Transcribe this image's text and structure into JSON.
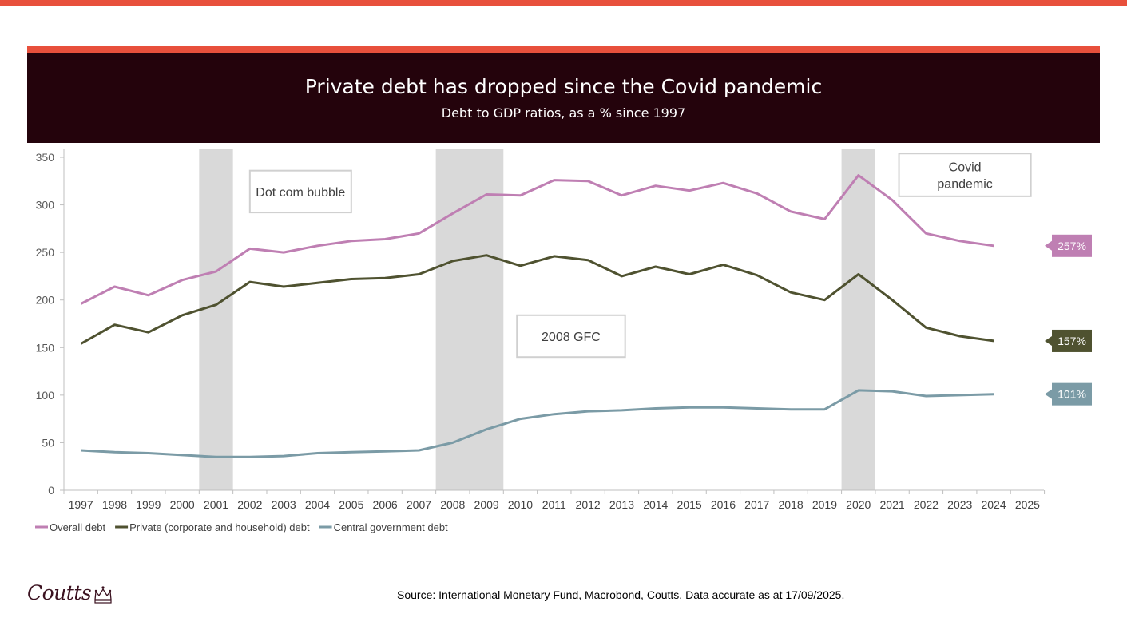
{
  "header": {
    "title": "Private debt has dropped since the Covid pandemic",
    "subtitle": "Debt to GDP ratios, as a % since 1997"
  },
  "colors": {
    "top_bar": "#e8503c",
    "header_bg": "#24030c",
    "overall": "#bf7fb3",
    "private": "#4f5230",
    "government": "#7b9ba6",
    "shading": "#d9d9d9"
  },
  "chart_data": {
    "type": "line",
    "x": [
      1997,
      1998,
      1999,
      2000,
      2001,
      2002,
      2003,
      2004,
      2005,
      2006,
      2007,
      2008,
      2009,
      2010,
      2011,
      2012,
      2013,
      2014,
      2015,
      2016,
      2017,
      2018,
      2019,
      2020,
      2021,
      2022,
      2023,
      2024
    ],
    "x_ticks": [
      "1997",
      "1998",
      "1999",
      "2000",
      "2001",
      "2002",
      "2003",
      "2004",
      "2005",
      "2006",
      "2007",
      "2008",
      "2009",
      "2010",
      "2011",
      "2012",
      "2013",
      "2014",
      "2015",
      "2016",
      "2017",
      "2018",
      "2019",
      "2020",
      "2021",
      "2022",
      "2023",
      "2024",
      "2025"
    ],
    "ylim": [
      0,
      350
    ],
    "y_ticks": [
      "0",
      "50",
      "100",
      "150",
      "200",
      "250",
      "300",
      "350"
    ],
    "series": [
      {
        "name": "Overall debt",
        "color": "#bf7fb3",
        "end_label": "257%",
        "values": [
          196,
          214,
          205,
          221,
          230,
          254,
          250,
          257,
          262,
          264,
          270,
          291,
          311,
          310,
          326,
          325,
          310,
          320,
          315,
          323,
          312,
          293,
          285,
          331,
          305,
          270,
          262,
          257
        ]
      },
      {
        "name": "Private (corporate and household) debt",
        "color": "#4f5230",
        "end_label": "157%",
        "values": [
          154,
          174,
          166,
          184,
          195,
          219,
          214,
          218,
          222,
          223,
          227,
          241,
          247,
          236,
          246,
          242,
          225,
          235,
          227,
          237,
          226,
          208,
          200,
          227,
          200,
          171,
          162,
          157
        ]
      },
      {
        "name": "Central government debt",
        "color": "#7b9ba6",
        "end_label": "101%",
        "values": [
          42,
          40,
          39,
          37,
          35,
          35,
          36,
          39,
          40,
          41,
          42,
          50,
          64,
          75,
          80,
          83,
          84,
          86,
          87,
          87,
          86,
          85,
          85,
          105,
          104,
          99,
          100,
          101
        ]
      }
    ],
    "shaded_periods": [
      {
        "from": 2000.5,
        "to": 2001.5
      },
      {
        "from": 2007.5,
        "to": 2009.5
      },
      {
        "from": 2019.5,
        "to": 2020.5
      }
    ],
    "annotations": [
      {
        "lines": [
          "Dot com bubble"
        ],
        "x_from": 2002.0,
        "x_to": 2005.0,
        "y_top": 336,
        "y_bottom": 292
      },
      {
        "lines": [
          "2008 GFC"
        ],
        "x_from": 2009.9,
        "x_to": 2013.1,
        "y_top": 184,
        "y_bottom": 140
      },
      {
        "lines": [
          "Covid",
          "pandemic"
        ],
        "x_from": 2021.2,
        "x_to": 2025.1,
        "y_top": 354,
        "y_bottom": 309
      }
    ],
    "legend_position": "bottom-left",
    "grid": false
  },
  "footer": {
    "logo": "Coutts",
    "source": "Source: International Monetary Fund, Macrobond, Coutts. Data accurate as at 17/09/2025."
  }
}
